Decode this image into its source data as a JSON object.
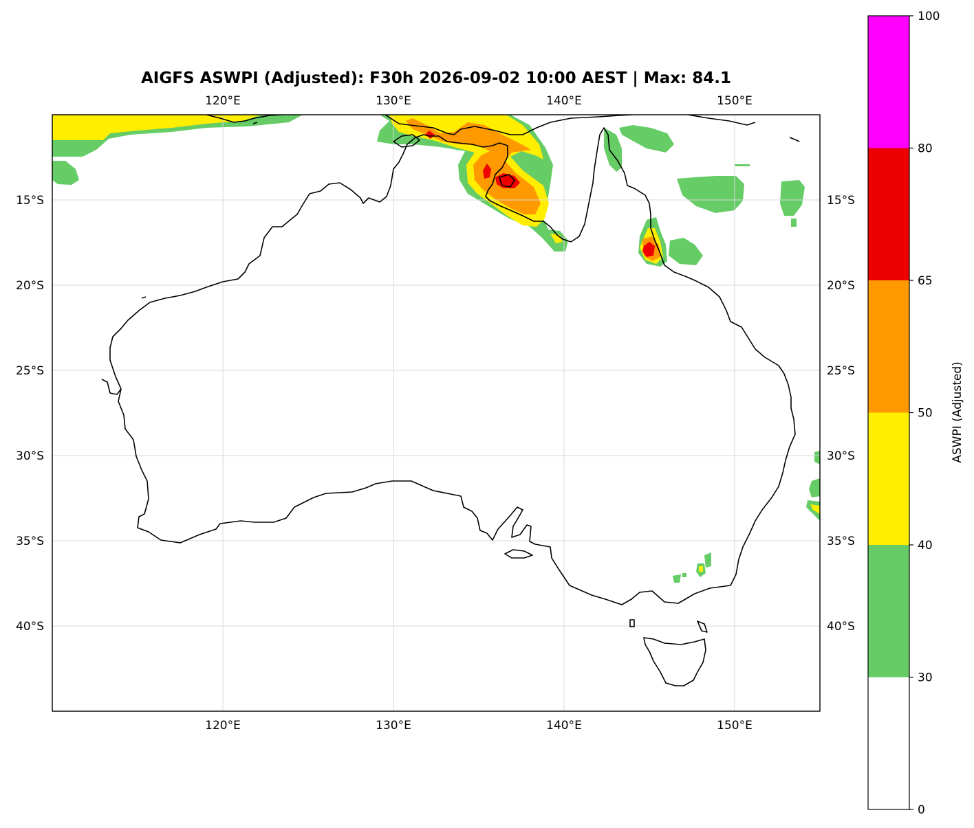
{
  "title": "AIGFS ASWPI (Adjusted): F30h 2026-09-02 10:00 AEST | Max: 84.1",
  "map": {
    "lon_range": [
      110,
      155
    ],
    "lat_range": [
      -45,
      -10
    ],
    "lon_ticks": [
      {
        "value": 120,
        "label": "120°E"
      },
      {
        "value": 130,
        "label": "130°E"
      },
      {
        "value": 140,
        "label": "140°E"
      },
      {
        "value": 150,
        "label": "150°E"
      }
    ],
    "lat_ticks": [
      {
        "value": -15,
        "label": "15°S"
      },
      {
        "value": -20,
        "label": "20°S"
      },
      {
        "value": -25,
        "label": "25°S"
      },
      {
        "value": -30,
        "label": "30°S"
      },
      {
        "value": -35,
        "label": "35°S"
      },
      {
        "value": -40,
        "label": "40°S"
      }
    ],
    "grid": true,
    "coastline_color": "#000000"
  },
  "colorbar": {
    "label": "ASWPI (Adjusted)",
    "levels": [
      {
        "from": 0,
        "to": 30,
        "color": "#ffffff"
      },
      {
        "from": 30,
        "to": 40,
        "color": "#66cc66"
      },
      {
        "from": 40,
        "to": 50,
        "color": "#ffee00"
      },
      {
        "from": 50,
        "to": 65,
        "color": "#ff9900"
      },
      {
        "from": 65,
        "to": 80,
        "color": "#ee0000"
      },
      {
        "from": 80,
        "to": 100,
        "color": "#ff00ff"
      }
    ],
    "ticks": [
      {
        "value": 0,
        "label": "0"
      },
      {
        "value": 30,
        "label": "30"
      },
      {
        "value": 40,
        "label": "40"
      },
      {
        "value": 50,
        "label": "50"
      },
      {
        "value": 65,
        "label": "65"
      },
      {
        "value": 80,
        "label": "80"
      },
      {
        "value": 100,
        "label": "100"
      }
    ]
  }
}
